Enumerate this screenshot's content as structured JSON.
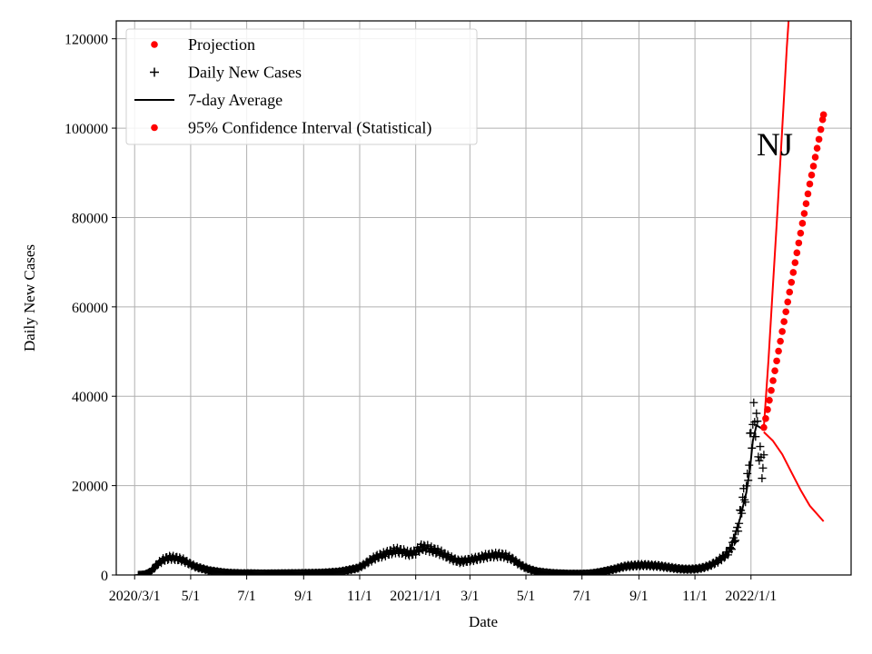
{
  "chart_data": {
    "type": "line",
    "title": "",
    "xlabel": "Date",
    "ylabel": "Daily New Cases",
    "annotation": "NJ",
    "x_tick_labels": [
      "2020/3/1",
      "5/1",
      "7/1",
      "9/1",
      "11/1",
      "2021/1/1",
      "3/1",
      "5/1",
      "7/1",
      "9/1",
      "11/1",
      "2022/1/1"
    ],
    "x_tick_dates": [
      "2020-03-01",
      "2020-05-01",
      "2020-07-01",
      "2020-09-01",
      "2020-11-01",
      "2021-01-01",
      "2021-03-01",
      "2021-05-01",
      "2021-07-01",
      "2021-09-01",
      "2021-11-01",
      "2022-01-01"
    ],
    "xlim": [
      "2020-02-10",
      "2022-04-20"
    ],
    "y_ticks": [
      0,
      20000,
      40000,
      60000,
      80000,
      100000,
      120000
    ],
    "y_tick_labels": [
      "0",
      "20000",
      "40000",
      "60000",
      "80000",
      "100000",
      "120000"
    ],
    "ylim": [
      0,
      124000
    ],
    "grid": true,
    "legend_position": "top-left",
    "legend": [
      {
        "label": "Projection",
        "marker": "dot",
        "color": "#ff0000"
      },
      {
        "label": "Daily New Cases",
        "marker": "plus",
        "color": "#000000"
      },
      {
        "label": "7-day Average",
        "marker": "line",
        "color": "#000000"
      },
      {
        "label": "95% Confidence Interval (Statistical)",
        "marker": "dot",
        "color": "#ff0000"
      }
    ],
    "series": [
      {
        "name": "Daily New Cases",
        "style": "plus",
        "color": "#000000",
        "points": [
          [
            "2020-03-05",
            0
          ],
          [
            "2020-03-12",
            100
          ],
          [
            "2020-03-19",
            800
          ],
          [
            "2020-03-26",
            2500
          ],
          [
            "2020-04-02",
            3500
          ],
          [
            "2020-04-09",
            3900
          ],
          [
            "2020-04-16",
            3700
          ],
          [
            "2020-04-23",
            3300
          ],
          [
            "2020-04-30",
            2500
          ],
          [
            "2020-05-07",
            1800
          ],
          [
            "2020-05-14",
            1400
          ],
          [
            "2020-05-21",
            1000
          ],
          [
            "2020-05-28",
            800
          ],
          [
            "2020-06-04",
            600
          ],
          [
            "2020-06-11",
            450
          ],
          [
            "2020-06-18",
            400
          ],
          [
            "2020-06-25",
            350
          ],
          [
            "2020-07-02",
            350
          ],
          [
            "2020-07-09",
            330
          ],
          [
            "2020-07-16",
            300
          ],
          [
            "2020-07-23",
            310
          ],
          [
            "2020-07-30",
            320
          ],
          [
            "2020-08-06",
            330
          ],
          [
            "2020-08-13",
            350
          ],
          [
            "2020-08-20",
            360
          ],
          [
            "2020-08-27",
            380
          ],
          [
            "2020-09-03",
            400
          ],
          [
            "2020-09-10",
            420
          ],
          [
            "2020-09-17",
            450
          ],
          [
            "2020-09-24",
            500
          ],
          [
            "2020-10-01",
            600
          ],
          [
            "2020-10-08",
            700
          ],
          [
            "2020-10-15",
            900
          ],
          [
            "2020-10-22",
            1200
          ],
          [
            "2020-10-29",
            1500
          ],
          [
            "2020-11-05",
            2200
          ],
          [
            "2020-11-12",
            3200
          ],
          [
            "2020-11-19",
            4000
          ],
          [
            "2020-11-26",
            4500
          ],
          [
            "2020-12-03",
            5000
          ],
          [
            "2020-12-10",
            5500
          ],
          [
            "2020-12-17",
            5300
          ],
          [
            "2020-12-24",
            4800
          ],
          [
            "2020-12-31",
            5000
          ],
          [
            "2021-01-07",
            6200
          ],
          [
            "2021-01-14",
            6000
          ],
          [
            "2021-01-21",
            5500
          ],
          [
            "2021-01-28",
            5000
          ],
          [
            "2021-02-04",
            4200
          ],
          [
            "2021-02-11",
            3500
          ],
          [
            "2021-02-18",
            3000
          ],
          [
            "2021-02-25",
            3200
          ],
          [
            "2021-03-04",
            3500
          ],
          [
            "2021-03-11",
            3800
          ],
          [
            "2021-03-18",
            4200
          ],
          [
            "2021-03-25",
            4400
          ],
          [
            "2021-04-01",
            4500
          ],
          [
            "2021-04-08",
            4300
          ],
          [
            "2021-04-15",
            3700
          ],
          [
            "2021-04-22",
            2700
          ],
          [
            "2021-04-29",
            1800
          ],
          [
            "2021-05-06",
            1200
          ],
          [
            "2021-05-13",
            800
          ],
          [
            "2021-05-20",
            600
          ],
          [
            "2021-05-27",
            450
          ],
          [
            "2021-06-03",
            350
          ],
          [
            "2021-06-10",
            300
          ],
          [
            "2021-06-17",
            250
          ],
          [
            "2021-06-24",
            250
          ],
          [
            "2021-07-01",
            250
          ],
          [
            "2021-07-08",
            300
          ],
          [
            "2021-07-15",
            450
          ],
          [
            "2021-07-22",
            700
          ],
          [
            "2021-07-29",
            1000
          ],
          [
            "2021-08-05",
            1300
          ],
          [
            "2021-08-12",
            1700
          ],
          [
            "2021-08-19",
            2000
          ],
          [
            "2021-08-26",
            2100
          ],
          [
            "2021-09-02",
            2200
          ],
          [
            "2021-09-09",
            2200
          ],
          [
            "2021-09-16",
            2100
          ],
          [
            "2021-09-23",
            2000
          ],
          [
            "2021-09-30",
            1800
          ],
          [
            "2021-10-07",
            1600
          ],
          [
            "2021-10-14",
            1400
          ],
          [
            "2021-10-21",
            1300
          ],
          [
            "2021-10-28",
            1300
          ],
          [
            "2021-11-04",
            1400
          ],
          [
            "2021-11-11",
            1700
          ],
          [
            "2021-11-18",
            2200
          ],
          [
            "2021-11-25",
            3000
          ],
          [
            "2021-12-02",
            4000
          ],
          [
            "2021-12-09",
            5500
          ],
          [
            "2021-12-16",
            9000
          ],
          [
            "2021-12-20",
            13000
          ],
          [
            "2021-12-23",
            17000
          ],
          [
            "2021-12-27",
            18500
          ],
          [
            "2021-12-30",
            26000
          ],
          [
            "2022-01-01",
            31000
          ],
          [
            "2022-01-03",
            33500
          ],
          [
            "2022-01-05",
            35500
          ],
          [
            "2022-01-07",
            34000
          ],
          [
            "2022-01-09",
            29000
          ],
          [
            "2022-01-11",
            26000
          ],
          [
            "2022-01-13",
            24500
          ],
          [
            "2022-01-15",
            24000
          ]
        ]
      },
      {
        "name": "7-day Average",
        "style": "line",
        "color": "#000000",
        "points": [
          [
            "2020-03-05",
            0
          ],
          [
            "2020-03-19",
            600
          ],
          [
            "2020-04-02",
            3200
          ],
          [
            "2020-04-16",
            3700
          ],
          [
            "2020-04-30",
            2600
          ],
          [
            "2020-05-14",
            1400
          ],
          [
            "2020-05-28",
            800
          ],
          [
            "2020-06-11",
            450
          ],
          [
            "2020-06-25",
            350
          ],
          [
            "2020-07-23",
            310
          ],
          [
            "2020-08-20",
            360
          ],
          [
            "2020-09-17",
            450
          ],
          [
            "2020-10-15",
            900
          ],
          [
            "2020-11-05",
            2200
          ],
          [
            "2020-11-19",
            4000
          ],
          [
            "2020-12-10",
            5400
          ],
          [
            "2020-12-31",
            5000
          ],
          [
            "2021-01-14",
            5900
          ],
          [
            "2021-02-11",
            3600
          ],
          [
            "2021-03-11",
            3800
          ],
          [
            "2021-04-01",
            4400
          ],
          [
            "2021-04-22",
            2800
          ],
          [
            "2021-05-13",
            800
          ],
          [
            "2021-06-10",
            300
          ],
          [
            "2021-07-08",
            300
          ],
          [
            "2021-08-05",
            1300
          ],
          [
            "2021-09-02",
            2200
          ],
          [
            "2021-09-30",
            1800
          ],
          [
            "2021-10-28",
            1300
          ],
          [
            "2021-11-18",
            2200
          ],
          [
            "2021-12-09",
            5500
          ],
          [
            "2021-12-20",
            12500
          ],
          [
            "2021-12-27",
            18500
          ],
          [
            "2021-12-31",
            24000
          ],
          [
            "2022-01-03",
            30000
          ],
          [
            "2022-01-07",
            33500
          ],
          [
            "2022-01-11",
            33000
          ],
          [
            "2022-01-15",
            32500
          ]
        ]
      },
      {
        "name": "Projection",
        "style": "dots",
        "color": "#ff0000",
        "points": [
          [
            "2022-01-15",
            33000
          ],
          [
            "2022-01-20",
            38000
          ],
          [
            "2022-01-25",
            43500
          ],
          [
            "2022-01-30",
            49000
          ],
          [
            "2022-02-04",
            54500
          ],
          [
            "2022-02-09",
            60000
          ],
          [
            "2022-02-14",
            65500
          ],
          [
            "2022-02-19",
            71000
          ],
          [
            "2022-02-24",
            76500
          ],
          [
            "2022-03-01",
            82000
          ],
          [
            "2022-03-06",
            87500
          ],
          [
            "2022-03-11",
            92500
          ],
          [
            "2022-03-16",
            97500
          ],
          [
            "2022-03-21",
            103000
          ]
        ]
      },
      {
        "name": "95% Confidence Interval (Statistical)",
        "style": "line",
        "color": "#ff0000",
        "points": [
          [
            "2022-01-15",
            33000
          ],
          [
            "2022-01-20",
            48000
          ],
          [
            "2022-01-25",
            65000
          ],
          [
            "2022-01-30",
            82000
          ],
          [
            "2022-02-04",
            100000
          ],
          [
            "2022-02-09",
            118000
          ],
          [
            "2022-02-11",
            124000
          ]
        ]
      },
      {
        "name": "95% Confidence Interval (Statistical)",
        "style": "line",
        "color": "#ff0000",
        "points": [
          [
            "2022-01-15",
            32000
          ],
          [
            "2022-01-25",
            30000
          ],
          [
            "2022-02-04",
            27000
          ],
          [
            "2022-02-14",
            23000
          ],
          [
            "2022-02-24",
            19000
          ],
          [
            "2022-03-06",
            15500
          ],
          [
            "2022-03-21",
            12000
          ]
        ]
      }
    ]
  }
}
